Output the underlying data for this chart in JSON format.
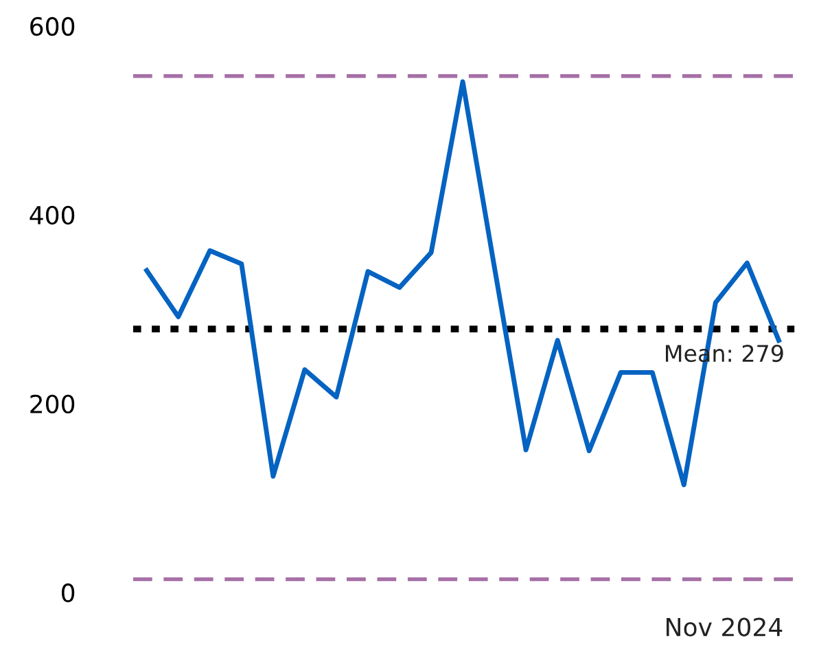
{
  "chart_data": {
    "type": "line",
    "categories": [
      null,
      null,
      null,
      null,
      null,
      null,
      null,
      null,
      null,
      null,
      null,
      null,
      null,
      null,
      null,
      null,
      null,
      null,
      null,
      null,
      null
    ],
    "series": [
      {
        "color": "#0563c1",
        "values": [
          341,
          292,
          362,
          348,
          123,
          236,
          207,
          340,
          323,
          360,
          541,
          345,
          151,
          267,
          150,
          233,
          233,
          114,
          307,
          349,
          267
        ]
      }
    ],
    "ylim": [
      0,
      600
    ],
    "yticks": [
      0,
      200,
      400,
      600
    ],
    "grid": false,
    "marker": "none",
    "line_style": "solid",
    "ref_lines": [
      {
        "axis": "y",
        "value": 547,
        "color": "#a66fa6",
        "line_style": "dashed"
      },
      {
        "axis": "y",
        "value": 14,
        "color": "#a66fa6",
        "line_style": "dashed"
      },
      {
        "axis": "y",
        "value": 279,
        "label": "Mean: 279",
        "color": "#000000",
        "line_style": "dotted"
      }
    ],
    "annotations": [
      "Nov 2024"
    ]
  }
}
